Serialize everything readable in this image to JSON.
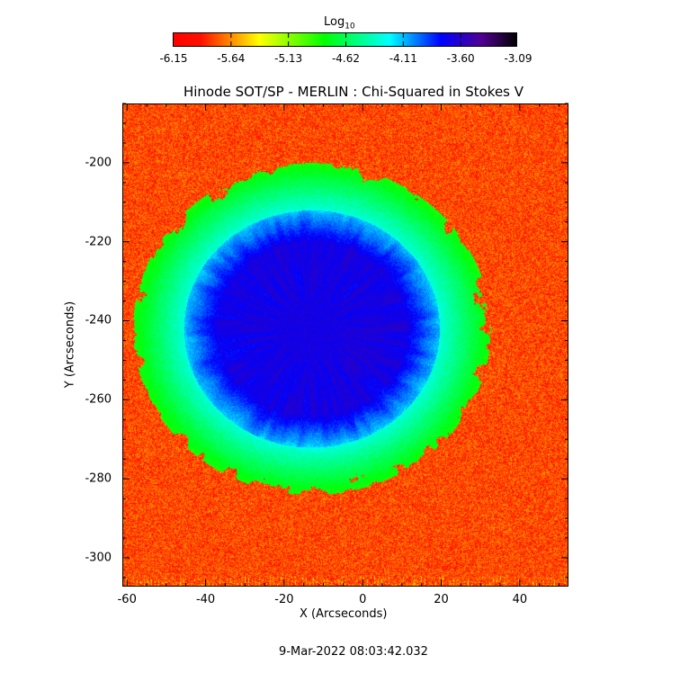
{
  "chart_data": {
    "type": "heatmap",
    "title": "Hinode SOT/SP - MERLIN : Chi-Squared in Stokes V",
    "xlabel": "X (Arcseconds)",
    "ylabel": "Y (Arcseconds)",
    "xlim": [
      -61.2,
      52.4
    ],
    "ylim": [
      -307.3,
      -185
    ],
    "xticks": [
      "-60",
      "-40",
      "-20",
      "0",
      "20",
      "40"
    ],
    "xtick_values": [
      -60,
      -40,
      -20,
      0,
      20,
      40
    ],
    "yticks": [
      "-200",
      "-220",
      "-240",
      "-260",
      "-280",
      "-300"
    ],
    "ytick_values": [
      -200,
      -220,
      -240,
      -260,
      -280,
      -300
    ],
    "colorbar": {
      "label": "Log",
      "label_sub": "10",
      "range": [
        -6.15,
        -3.09
      ],
      "ticks": [
        "-6.15",
        "-5.64",
        "-5.13",
        "-4.62",
        "-4.11",
        "-3.60",
        "-3.09"
      ],
      "colormap": [
        "#ff0000",
        "#ff1000",
        "#ffff00",
        "#00ff00",
        "#00ffff",
        "#0000ff",
        "#500090",
        "#000000"
      ]
    },
    "timestamp": "9-Mar-2022 08:03:42.032"
  }
}
